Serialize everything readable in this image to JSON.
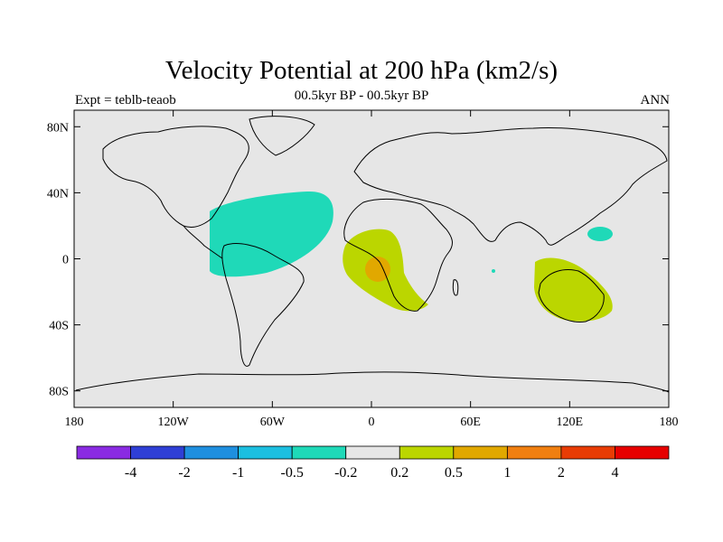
{
  "chart_data": {
    "type": "map-contour",
    "title": "Velocity Potential at 200 hPa (km2/s)",
    "subtitle": "00.5kyr BP - 00.5kyr BP",
    "left_label": "Expt = teblb-teaob",
    "right_label": "ANN",
    "lon_range": [
      -180,
      180
    ],
    "lat_range": [
      -90,
      90
    ],
    "x_ticks": [
      {
        "value": -180,
        "label": "180"
      },
      {
        "value": -120,
        "label": "120W"
      },
      {
        "value": -60,
        "label": "60W"
      },
      {
        "value": 0,
        "label": "0"
      },
      {
        "value": 60,
        "label": "60E"
      },
      {
        "value": 120,
        "label": "120E"
      },
      {
        "value": 180,
        "label": "180"
      }
    ],
    "y_ticks": [
      {
        "value": 80,
        "label": "80N"
      },
      {
        "value": 40,
        "label": "40N"
      },
      {
        "value": 0,
        "label": "0"
      },
      {
        "value": -40,
        "label": "40S"
      },
      {
        "value": -80,
        "label": "80S"
      }
    ],
    "colorbar": {
      "colors": [
        "#8a2be2",
        "#2f3fd6",
        "#1f8fdf",
        "#1cbfe0",
        "#1fd9b8",
        "#e6e6e6",
        "#bbd600",
        "#e1a800",
        "#f07f10",
        "#e83c05",
        "#e60000"
      ],
      "labels": [
        "-4",
        "-2",
        "-1",
        "-0.5",
        "-0.2",
        "0.2",
        "0.5",
        "1",
        "2",
        "4"
      ]
    },
    "regions": [
      {
        "name": "atlantic-negative",
        "value_range": "-0.5 to -0.2",
        "color": "#1fd9b8"
      },
      {
        "name": "west-pacific-negative",
        "value_range": "-0.5 to -0.2",
        "color": "#1fd9b8"
      },
      {
        "name": "africa-positive",
        "value_range": "0.2 to 0.5",
        "color": "#bbd600"
      },
      {
        "name": "africa-core",
        "value_range": "0.5 to 1",
        "color": "#e1a800"
      },
      {
        "name": "australia-positive",
        "value_range": "0.2 to 0.5",
        "color": "#bbd600"
      }
    ]
  }
}
